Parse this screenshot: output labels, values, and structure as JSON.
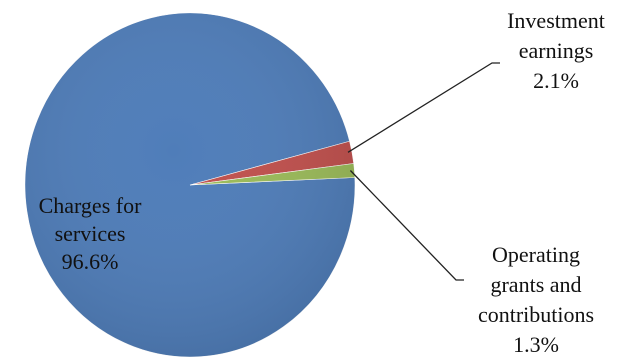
{
  "chart_data": {
    "type": "pie",
    "slices": [
      {
        "label_lines": [
          "Charges for",
          "services"
        ],
        "value": 96.6,
        "value_text": "96.6%",
        "color": "#4F7DB9"
      },
      {
        "label_lines": [
          "Investment",
          "earnings"
        ],
        "value": 2.1,
        "value_text": "2.1%",
        "color": "#C0504D"
      },
      {
        "label_lines": [
          "Operating",
          "grants and",
          "contributions"
        ],
        "value": 1.3,
        "value_text": "1.3%",
        "color": "#9BBB59"
      }
    ]
  }
}
